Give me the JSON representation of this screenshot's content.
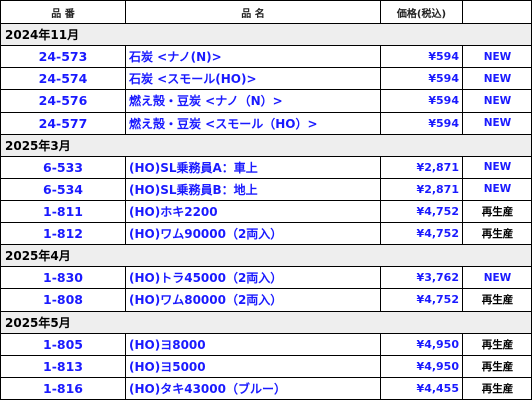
{
  "header": {
    "code": "品 番",
    "name": "品 名",
    "price": "価格(税込)",
    "status": ""
  },
  "groups": [
    {
      "title": "2024年11月",
      "rows": [
        {
          "code": "24-573",
          "name": "石炭 <ナノ(N)>",
          "price": "¥594",
          "status": "NEW",
          "type": "new"
        },
        {
          "code": "24-574",
          "name": "石炭 <スモール(HO)>",
          "price": "¥594",
          "status": "NEW",
          "type": "new"
        },
        {
          "code": "24-576",
          "name": "燃え殻・豆炭 <ナノ（N）>",
          "price": "¥594",
          "status": "NEW",
          "type": "new"
        },
        {
          "code": "24-577",
          "name": "燃え殻・豆炭 <スモール（HO）>",
          "price": "¥594",
          "status": "NEW",
          "type": "new"
        }
      ]
    },
    {
      "title": "2025年3月",
      "rows": [
        {
          "code": "6-533",
          "name": "(HO)SL乗務員A：車上",
          "price": "¥2,871",
          "status": "NEW",
          "type": "new"
        },
        {
          "code": "6-534",
          "name": "(HO)SL乗務員B：地上",
          "price": "¥2,871",
          "status": "NEW",
          "type": "new"
        },
        {
          "code": "1-811",
          "name": "(HO)ホキ2200",
          "price": "¥4,752",
          "status": "再生産",
          "type": "re"
        },
        {
          "code": "1-812",
          "name": "(HO)ワム90000（2両入）",
          "price": "¥4,752",
          "status": "再生産",
          "type": "re"
        }
      ]
    },
    {
      "title": "2025年4月",
      "rows": [
        {
          "code": "1-830",
          "name": "(HO)トラ45000（2両入）",
          "price": "¥3,762",
          "status": "NEW",
          "type": "new"
        },
        {
          "code": "1-808",
          "name": "(HO)ワム80000（2両入）",
          "price": "¥4,752",
          "status": "再生産",
          "type": "re"
        }
      ]
    },
    {
      "title": "2025年5月",
      "rows": [
        {
          "code": "1-805",
          "name": "(HO)ヨ8000",
          "price": "¥4,950",
          "status": "再生産",
          "type": "re"
        },
        {
          "code": "1-813",
          "name": "(HO)ヨ5000",
          "price": "¥4,950",
          "status": "再生産",
          "type": "re"
        },
        {
          "code": "1-816",
          "name": "(HO)タキ43000（ブルー）",
          "price": "¥4,455",
          "status": "再生産",
          "type": "re"
        }
      ]
    }
  ]
}
